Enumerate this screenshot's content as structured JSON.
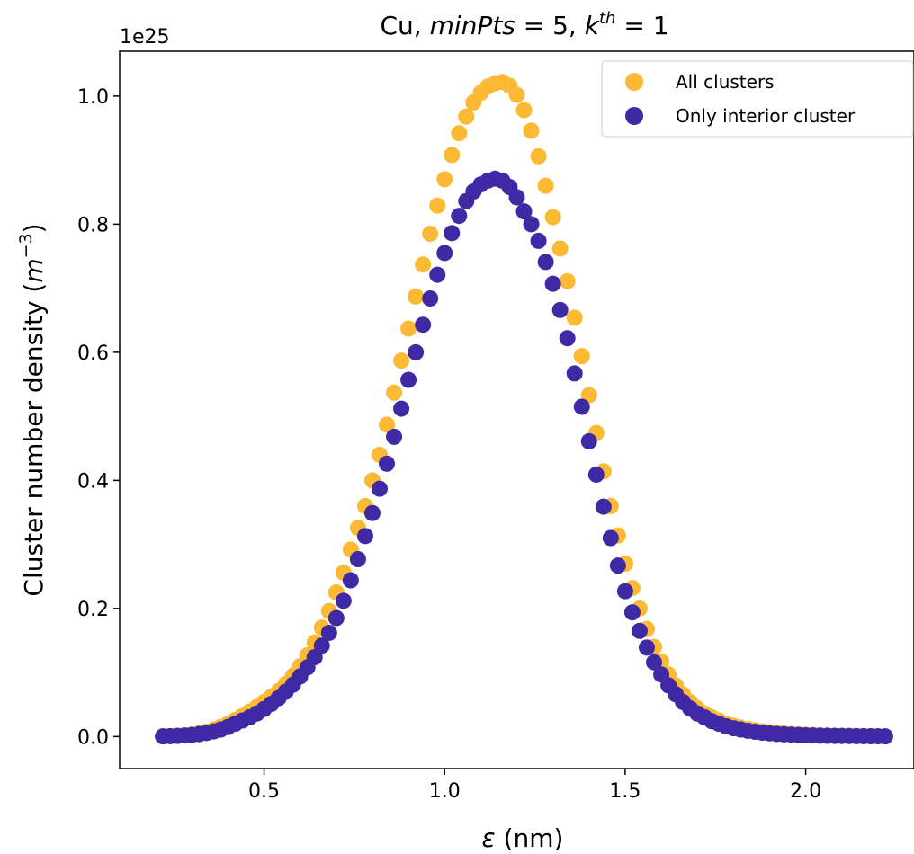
{
  "chart_data": {
    "type": "scatter",
    "title_parts": [
      "Cu, ",
      "minPts",
      " = 5, ",
      "k",
      "th",
      " = 1"
    ],
    "xlabel_parts": [
      "ε",
      " (nm)"
    ],
    "ylabel_parts": [
      "Cluster number density (",
      "m",
      "−3",
      ")"
    ],
    "y_offset_text": "1e25",
    "xlim": [
      0.1,
      2.3
    ],
    "ylim": [
      -0.05,
      1.07
    ],
    "x_ticks": [
      0.5,
      1.0,
      1.5,
      2.0
    ],
    "x_tick_labels": [
      "0.5",
      "1.0",
      "1.5",
      "2.0"
    ],
    "y_ticks": [
      0.0,
      0.2,
      0.4,
      0.6,
      0.8,
      1.0
    ],
    "y_tick_labels": [
      "0.0",
      "0.2",
      "0.4",
      "0.6",
      "0.8",
      "1.0"
    ],
    "legend_position": "top-right",
    "x": [
      0.22,
      0.24,
      0.26,
      0.28,
      0.3,
      0.32,
      0.34,
      0.36,
      0.38,
      0.4,
      0.42,
      0.44,
      0.46,
      0.48,
      0.5,
      0.52,
      0.54,
      0.56,
      0.58,
      0.6,
      0.62,
      0.64,
      0.66,
      0.68,
      0.7,
      0.72,
      0.74,
      0.76,
      0.78,
      0.8,
      0.82,
      0.84,
      0.86,
      0.88,
      0.9,
      0.92,
      0.94,
      0.96,
      0.98,
      1.0,
      1.02,
      1.04,
      1.06,
      1.08,
      1.1,
      1.12,
      1.14,
      1.16,
      1.18,
      1.2,
      1.22,
      1.24,
      1.26,
      1.28,
      1.3,
      1.32,
      1.34,
      1.36,
      1.38,
      1.4,
      1.42,
      1.44,
      1.46,
      1.48,
      1.5,
      1.52,
      1.54,
      1.56,
      1.58,
      1.6,
      1.62,
      1.64,
      1.66,
      1.68,
      1.7,
      1.72,
      1.74,
      1.76,
      1.78,
      1.8,
      1.82,
      1.84,
      1.86,
      1.88,
      1.9,
      1.92,
      1.94,
      1.96,
      1.98,
      2.0,
      2.02,
      2.04,
      2.06,
      2.08,
      2.1,
      2.12,
      2.14,
      2.16,
      2.18,
      2.2,
      2.22
    ],
    "series": [
      {
        "name": "All clusters",
        "color": "#fbb934",
        "values": [
          0.0004,
          0.0008,
          0.0014,
          0.0022,
          0.0034,
          0.0052,
          0.0076,
          0.011,
          0.015,
          0.02,
          0.026,
          0.032,
          0.039,
          0.046,
          0.054,
          0.062,
          0.071,
          0.082,
          0.095,
          0.11,
          0.127,
          0.147,
          0.17,
          0.196,
          0.225,
          0.256,
          0.292,
          0.326,
          0.36,
          0.4,
          0.44,
          0.487,
          0.537,
          0.587,
          0.637,
          0.687,
          0.737,
          0.785,
          0.829,
          0.87,
          0.908,
          0.942,
          0.968,
          0.99,
          1.005,
          1.015,
          1.02,
          1.022,
          1.016,
          1.002,
          0.978,
          0.946,
          0.906,
          0.86,
          0.811,
          0.762,
          0.711,
          0.654,
          0.594,
          0.533,
          0.474,
          0.414,
          0.36,
          0.314,
          0.27,
          0.232,
          0.2,
          0.168,
          0.14,
          0.117,
          0.097,
          0.08,
          0.066,
          0.054,
          0.044,
          0.036,
          0.03,
          0.025,
          0.02,
          0.017,
          0.014,
          0.012,
          0.01,
          0.008,
          0.007,
          0.006,
          0.005,
          0.004,
          0.0035,
          0.003,
          0.0025,
          0.002,
          0.0017,
          0.0014,
          0.0012,
          0.001,
          0.0009,
          0.0008,
          0.0007,
          0.0006,
          0.0005
        ]
      },
      {
        "name": "Only interior cluster",
        "color": "#3f29a5",
        "values": [
          0.0003,
          0.0006,
          0.001,
          0.0016,
          0.0025,
          0.0038,
          0.0056,
          0.008,
          0.011,
          0.015,
          0.02,
          0.025,
          0.03,
          0.036,
          0.043,
          0.051,
          0.06,
          0.07,
          0.081,
          0.094,
          0.108,
          0.124,
          0.142,
          0.162,
          0.185,
          0.212,
          0.244,
          0.277,
          0.313,
          0.349,
          0.387,
          0.426,
          0.468,
          0.512,
          0.557,
          0.6,
          0.643,
          0.684,
          0.721,
          0.755,
          0.786,
          0.813,
          0.836,
          0.851,
          0.862,
          0.868,
          0.871,
          0.868,
          0.858,
          0.842,
          0.82,
          0.8,
          0.774,
          0.741,
          0.707,
          0.666,
          0.622,
          0.567,
          0.515,
          0.461,
          0.409,
          0.359,
          0.31,
          0.267,
          0.227,
          0.194,
          0.165,
          0.139,
          0.116,
          0.097,
          0.08,
          0.066,
          0.054,
          0.044,
          0.036,
          0.03,
          0.024,
          0.02,
          0.016,
          0.013,
          0.011,
          0.009,
          0.0075,
          0.006,
          0.005,
          0.004,
          0.0035,
          0.003,
          0.0025,
          0.002,
          0.0017,
          0.0014,
          0.0012,
          0.001,
          0.0009,
          0.0008,
          0.0007,
          0.0006,
          0.0005,
          0.0004,
          0.0003
        ]
      }
    ]
  }
}
